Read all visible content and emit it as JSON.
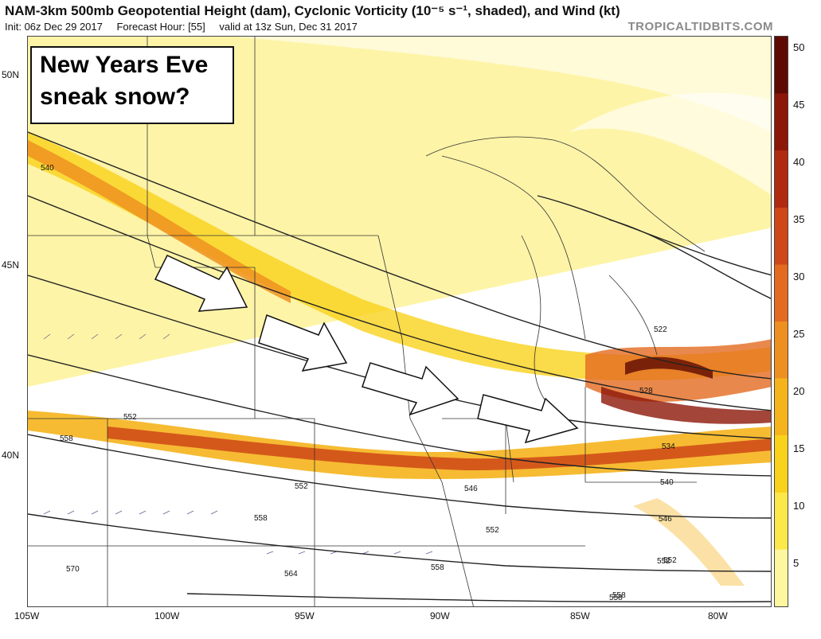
{
  "header": {
    "title": "NAM-3km 500mb Geopotential Height (dam), Cyclonic Vorticity (10⁻⁵ s⁻¹, shaded), and Wind (kt)",
    "init": "Init: 06z Dec 29 2017",
    "forecast_hour": "Forecast Hour: [55]",
    "valid": "valid at 13z Sun, Dec 31 2017",
    "brand": "TROPICALTIDBITS.COM"
  },
  "callout": {
    "line1": "New Years Eve",
    "line2": "sneak snow?"
  },
  "axes": {
    "lat_labels": [
      "50N",
      "45N",
      "40N"
    ],
    "lon_labels": [
      "105W",
      "100W",
      "95W",
      "90W",
      "85W",
      "80W"
    ]
  },
  "contour_labels": [
    "540",
    "552",
    "558",
    "552",
    "552",
    "558",
    "564",
    "570",
    "546",
    "558",
    "552",
    "558",
    "522",
    "528",
    "534",
    "540",
    "546",
    "552",
    "558"
  ],
  "colorbar": {
    "ticks": [
      "50",
      "45",
      "40",
      "35",
      "30",
      "25",
      "20",
      "15",
      "10",
      "5"
    ],
    "colors": [
      "#fef7a0",
      "#fde84a",
      "#f9d21b",
      "#f5b41c",
      "#ee9020",
      "#e36a1f",
      "#cf4618",
      "#b02a10",
      "#8c1608",
      "#5e0a03"
    ]
  },
  "annotations": {
    "arrows": 4,
    "arrow_color": "#ffffff"
  }
}
